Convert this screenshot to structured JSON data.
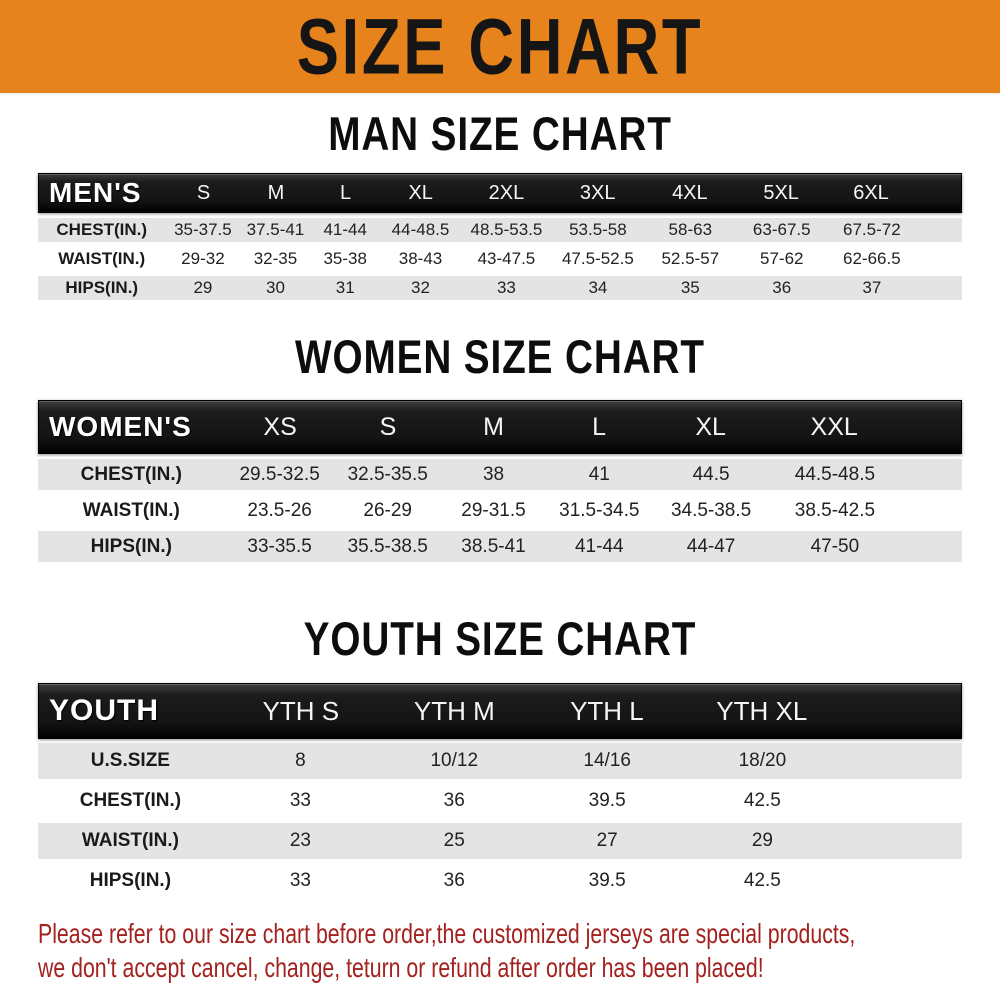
{
  "banner": {
    "title": "SIZE CHART"
  },
  "men": {
    "heading": "MAN SIZE CHART",
    "label": "MEN'S",
    "columns": [
      "S",
      "M",
      "L",
      "XL",
      "2XL",
      "3XL",
      "4XL",
      "5XL",
      "6XL"
    ],
    "rows": [
      {
        "label": "CHEST(IN.)",
        "values": [
          "35-37.5",
          "37.5-41",
          "41-44",
          "44-48.5",
          "48.5-53.5",
          "53.5-58",
          "58-63",
          "63-67.5",
          "67.5-72"
        ]
      },
      {
        "label": "WAIST(IN.)",
        "values": [
          "29-32",
          "32-35",
          "35-38",
          "38-43",
          "43-47.5",
          "47.5-52.5",
          "52.5-57",
          "57-62",
          "62-66.5"
        ]
      },
      {
        "label": "HIPS(IN.)",
        "values": [
          "29",
          "30",
          "31",
          "32",
          "33",
          "34",
          "35",
          "36",
          "37"
        ]
      }
    ]
  },
  "women": {
    "heading": "WOMEN SIZE CHART",
    "label": "WOMEN'S",
    "columns": [
      "XS",
      "S",
      "M",
      "L",
      "XL",
      "XXL"
    ],
    "rows": [
      {
        "label": "CHEST(IN.)",
        "values": [
          "29.5-32.5",
          "32.5-35.5",
          "38",
          "41",
          "44.5",
          "44.5-48.5"
        ]
      },
      {
        "label": "WAIST(IN.)",
        "values": [
          "23.5-26",
          "26-29",
          "29-31.5",
          "31.5-34.5",
          "34.5-38.5",
          "38.5-42.5"
        ]
      },
      {
        "label": "HIPS(IN.)",
        "values": [
          "33-35.5",
          "35.5-38.5",
          "38.5-41",
          "41-44",
          "44-47",
          "47-50"
        ]
      }
    ]
  },
  "youth": {
    "heading": "YOUTH SIZE CHART",
    "label": "YOUTH",
    "columns": [
      "YTH S",
      "YTH M",
      "YTH L",
      "YTH XL"
    ],
    "rows": [
      {
        "label": "U.S.SIZE",
        "values": [
          "8",
          "10/12",
          "14/16",
          "18/20"
        ]
      },
      {
        "label": "CHEST(IN.)",
        "values": [
          "33",
          "36",
          "39.5",
          "42.5"
        ]
      },
      {
        "label": "WAIST(IN.)",
        "values": [
          "23",
          "25",
          "27",
          "29"
        ]
      },
      {
        "label": "HIPS(IN.)",
        "values": [
          "33",
          "36",
          "39.5",
          "42.5"
        ]
      }
    ]
  },
  "footer": {
    "line1": "Please refer to our size chart before order,the customized jerseys are special products,",
    "line2": "we don't accept cancel, change, teturn or refund after order has been placed!"
  },
  "colors": {
    "banner_bg": "#e7831c",
    "header_bar": "#161616",
    "row_shade": "#e4e4e4",
    "footer_text": "#a3221f"
  }
}
